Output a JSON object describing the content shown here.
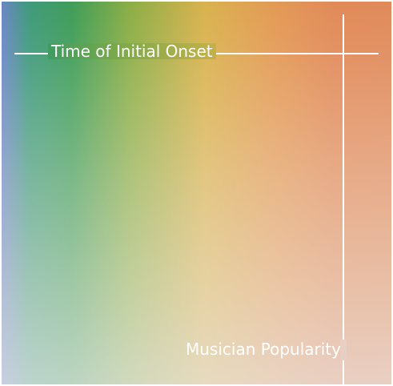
{
  "labels": {
    "horizontal_axis": "Time of Initial Onset",
    "vertical_axis": "Musician Popularity"
  },
  "colors": {
    "gradient_left": "#6a86c6",
    "gradient_green": "#3f9d58",
    "gradient_yellow": "#d9b24e",
    "gradient_orange": "#e18a58",
    "lines": "#ffffff",
    "text": "#ffffff"
  }
}
